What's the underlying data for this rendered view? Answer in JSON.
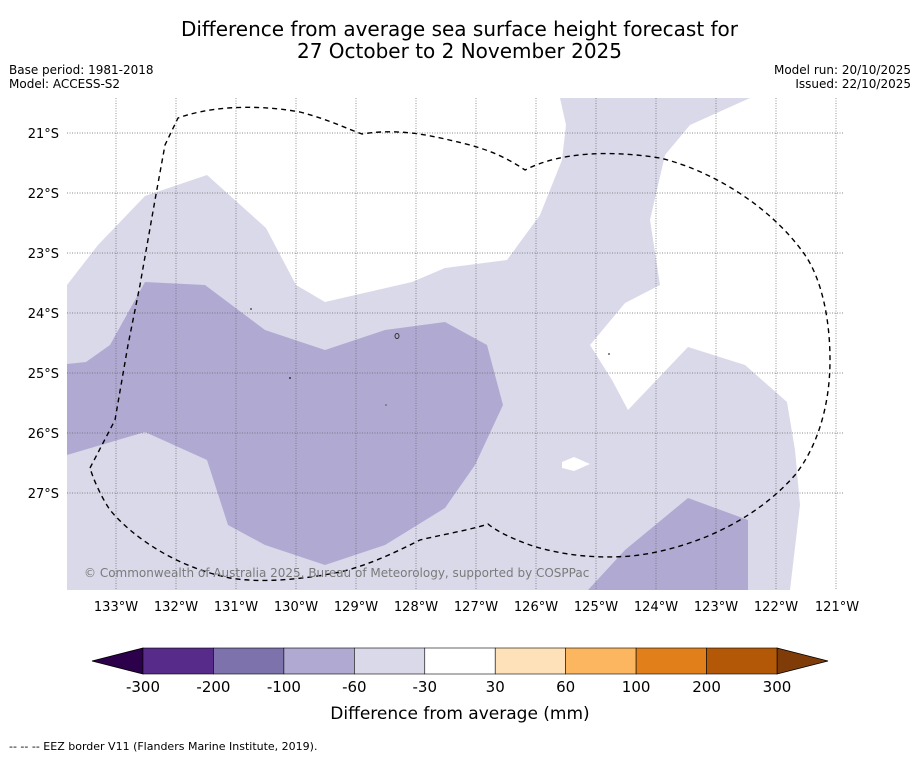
{
  "title": {
    "line1": "Difference from average sea surface height forecast for",
    "line2": "27 October to 2 November 2025"
  },
  "meta_left": {
    "base_period": "Base period: 1981-2018",
    "model": "Model: ACCESS-S2"
  },
  "meta_right": {
    "model_run": "Model run: 20/10/2025",
    "issued": "Issued: 22/10/2025"
  },
  "map": {
    "lon_ticks": [
      "133°W",
      "132°W",
      "131°W",
      "130°W",
      "129°W",
      "128°W",
      "127°W",
      "126°W",
      "125°W",
      "124°W",
      "123°W",
      "122°W",
      "121°W"
    ],
    "lat_ticks": [
      "21°S",
      "22°S",
      "23°S",
      "24°S",
      "25°S",
      "26°S",
      "27°S"
    ],
    "copyright": "© Commonwealth of Australia 2025, Bureau of Meteorology, supported by COSPPac",
    "fill_colors": {
      "-100": "#b0aad2",
      "-60": "#d9d9ea",
      "0": "#ffffff"
    }
  },
  "colorbar": {
    "label": "Difference from average (mm)",
    "ticks": [
      "-300",
      "-200",
      "-100",
      "-60",
      "-30",
      "30",
      "60",
      "100",
      "200",
      "300"
    ],
    "colors": [
      "#572b8a",
      "#7e72ad",
      "#b0aad2",
      "#d9d9ea",
      "#ffffff",
      "#fee1b8",
      "#fbb65f",
      "#e1801a",
      "#b35806"
    ],
    "under_color": "#2d004b",
    "over_color": "#7f3b08"
  },
  "footer": {
    "legend": "--  --  -- EEZ border V11 (Flanders Marine Institute, 2019)."
  }
}
